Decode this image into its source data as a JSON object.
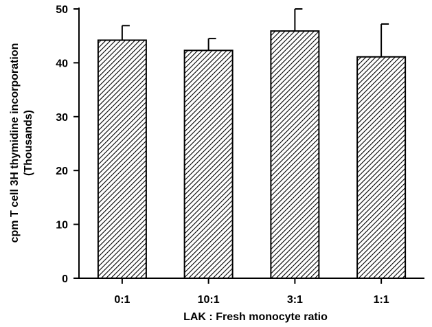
{
  "chart_data": {
    "type": "bar",
    "categories": [
      "0:1",
      "10:1",
      "3:1",
      "1:1"
    ],
    "values": [
      44.2,
      42.3,
      45.9,
      41.1
    ],
    "error_upper": [
      46.9,
      44.5,
      50.0,
      47.2
    ],
    "title": "",
    "xlabel": "LAK : Fresh monocyte ratio",
    "ylabel": "cpm T cell 3H thymidine incorporation",
    "ylabel2": "(Thousands)",
    "ylim": [
      0,
      50
    ],
    "yticks": [
      "0",
      "10",
      "20",
      "30",
      "40",
      "50"
    ],
    "grid": false,
    "bar_fill": "diagonal-hatch",
    "colors": {
      "ink": "#000000",
      "background": "#ffffff"
    }
  }
}
